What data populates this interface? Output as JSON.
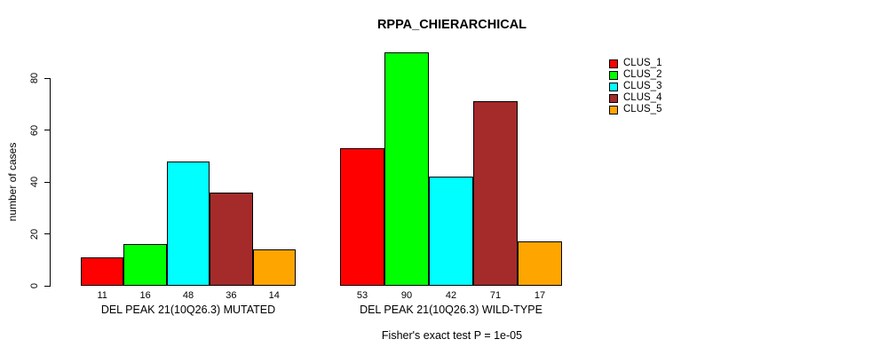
{
  "title": "RPPA_CHIERARCHICAL",
  "footer": "Fisher's exact test P = 1e-05",
  "chart_data": {
    "type": "bar",
    "title": "RPPA_CHIERARCHICAL",
    "xlabel": "",
    "ylabel": "number of cases",
    "ylim": [
      0,
      90
    ],
    "yticks": [
      0,
      20,
      40,
      60,
      80
    ],
    "grid": false,
    "legend_position": "top-right",
    "legend": [
      "CLUS_1",
      "CLUS_2",
      "CLUS_3",
      "CLUS_4",
      "CLUS_5"
    ],
    "series_colors": [
      "#FF0000",
      "#00FF00",
      "#00FFFF",
      "#A52A2A",
      "#FFA500"
    ],
    "groups": [
      {
        "label": "DEL PEAK 21(10Q26.3) MUTATED",
        "values": [
          11,
          16,
          48,
          36,
          14
        ]
      },
      {
        "label": "DEL PEAK 21(10Q26.3) WILD-TYPE",
        "values": [
          53,
          90,
          42,
          71,
          17
        ]
      }
    ],
    "annotation": "Fisher's exact test P = 1e-05"
  }
}
